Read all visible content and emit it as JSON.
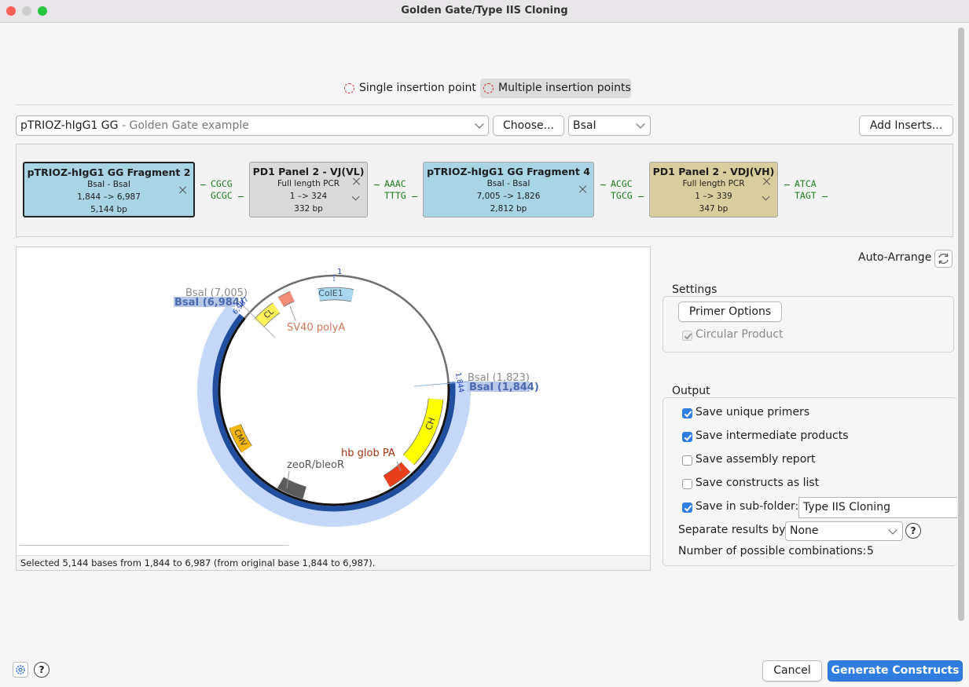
{
  "window": {
    "title": "Golden Gate/Type IIS Cloning"
  },
  "insertion_mode": {
    "options": [
      "Single insertion point",
      "Multiple insertion points"
    ],
    "selected": 1
  },
  "vector": {
    "name": "pTRIOZ-hIgG1 GG",
    "description": "- Golden Gate example",
    "choose_button": "Choose...",
    "enzyme": "BsaI",
    "add_button": "Add Inserts..."
  },
  "fragments": [
    {
      "title": "pTRIOZ-hIgG1 GG Fragment 2",
      "detail": "BsaI - BsaI",
      "range": "1,844 –> 6,987",
      "size": "5,144 bp",
      "color": "#a8d4e3",
      "selected": true
    },
    {
      "title": "PD1 Panel 2 - VJ(VL)",
      "detail": "Full length PCR",
      "range": "1 –> 324",
      "size": "332 bp",
      "color": "#dadada",
      "selected": false
    },
    {
      "title": "pTRIOZ-hIgG1 GG Fragment 4",
      "detail": "BsaI - BsaI",
      "range": "7,005 –> 1,826",
      "size": "2,812 bp",
      "color": "#a8d4e3",
      "selected": false
    },
    {
      "title": "PD1 Panel 2 - VDJ(VH)",
      "detail": "Full length PCR",
      "range": "1 –> 339",
      "size": "347 bp",
      "color": "#d8cd9c",
      "selected": false
    }
  ],
  "overhangs": [
    {
      "top": "CGCG",
      "bottom": "GCGC"
    },
    {
      "top": "AAAC",
      "bottom": "TTTG"
    },
    {
      "top": "ACGC",
      "bottom": "TGCG"
    },
    {
      "top": "ATCA",
      "bottom": "TAGT"
    }
  ],
  "map": {
    "origin_label": "1",
    "sites": [
      "BsaI (7,005)",
      "BsaI (6,984)",
      "6,987",
      "BsaI (1,823)",
      "BsaI (1,844)",
      "1,844"
    ],
    "features": [
      {
        "name": "ColE1",
        "color": "#a9d8f2"
      },
      {
        "name": "CL",
        "color": "#fff35a"
      },
      {
        "name": "SV40 polyA",
        "color": "#f48c78"
      },
      {
        "name": "CH",
        "color": "#ffff00"
      },
      {
        "name": "hb glob PA",
        "color": "#ea3f1c"
      },
      {
        "name": "zeoR/bleoR",
        "color": "#5c5c5c"
      },
      {
        "name": "CMV",
        "color": "#f6b70a"
      }
    ],
    "status": "Selected 5,144 bases from 1,844 to 6,987 (from original base 1,844 to 6,987)."
  },
  "auto_arrange": "Auto-Arrange",
  "settings": {
    "title": "Settings",
    "primer_button": "Primer Options",
    "circular_product": {
      "label": "Circular Product",
      "checked": true
    }
  },
  "output": {
    "title": "Output",
    "options": [
      {
        "label": "Save unique primers",
        "checked": true
      },
      {
        "label": "Save intermediate products",
        "checked": true
      },
      {
        "label": "Save assembly report",
        "checked": false
      },
      {
        "label": "Save constructs as list",
        "checked": false
      },
      {
        "label": "Save in sub-folder:",
        "checked": true
      }
    ],
    "subfolder": "Type IIS Cloning",
    "separate_label": "Separate results by:",
    "separate_value": "None",
    "separate_help": "?",
    "combinations_label": "Number of possible combinations:",
    "combinations_value": 5
  },
  "footer": {
    "help": "?",
    "cancel": "Cancel",
    "generate": "Generate Constructs"
  }
}
